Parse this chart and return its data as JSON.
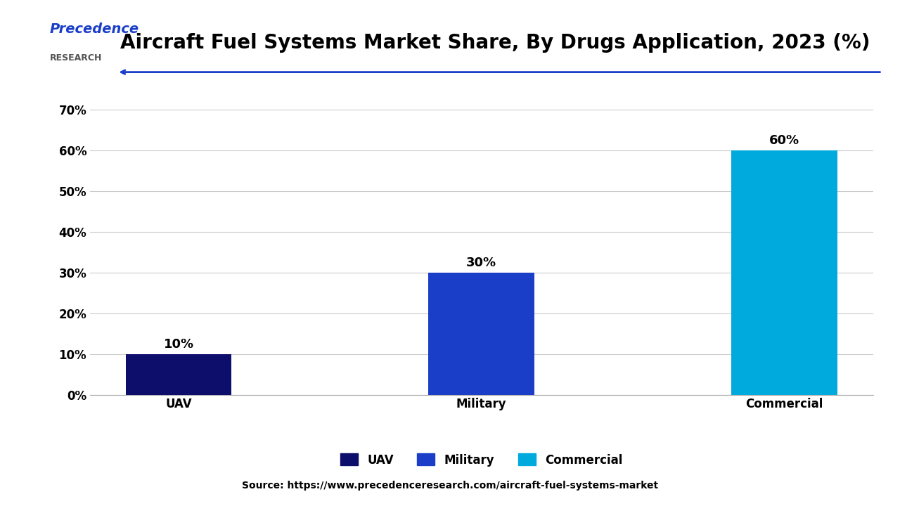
{
  "title": "Aircraft Fuel Systems Market Share, By Drugs Application, 2023 (%)",
  "categories": [
    "UAV",
    "Military",
    "Commercial"
  ],
  "values": [
    10,
    30,
    60
  ],
  "bar_colors": [
    "#0d0d6b",
    "#1a3ec8",
    "#00aadd"
  ],
  "bar_labels": [
    "10%",
    "30%",
    "60%"
  ],
  "yticks": [
    0,
    10,
    20,
    30,
    40,
    50,
    60,
    70
  ],
  "ytick_labels": [
    "0%",
    "10%",
    "20%",
    "30%",
    "40%",
    "50%",
    "60%",
    "70%"
  ],
  "ylim": [
    0,
    72
  ],
  "legend_labels": [
    "UAV",
    "Military",
    "Commercial"
  ],
  "source_text": "Source: https://www.precedenceresearch.com/aircraft-fuel-systems-market",
  "background_color": "#ffffff",
  "label_fontsize": 13,
  "tick_fontsize": 12,
  "title_fontsize": 20,
  "logo_text_top": "Precedence",
  "logo_text_bottom": "RESEARCH",
  "arrow_color": "#1a3ec8"
}
